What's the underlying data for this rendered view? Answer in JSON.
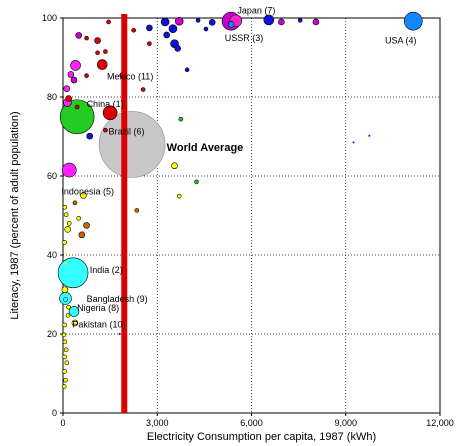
{
  "chart_data": {
    "type": "scatter",
    "xlabel": "Electricity Consumption per capita, 1987 (kWh)",
    "ylabel": "Literacy, 1987 (percent of adult population)",
    "xlim": [
      0,
      12000
    ],
    "ylim": [
      0,
      100
    ],
    "x_ticks": [
      0,
      3000,
      6000,
      9000,
      12000
    ],
    "x_tick_labels": [
      "0",
      "3,000",
      "6,000",
      "9,000",
      "12,000"
    ],
    "y_ticks": [
      0,
      20,
      40,
      60,
      80,
      100
    ],
    "y_tick_labels": [
      "0",
      "20",
      "40",
      "60",
      "80",
      "100"
    ],
    "grid": true,
    "reference_line": {
      "x": 1950,
      "color": "#dd0000"
    },
    "labels": [
      {
        "text": "Japan (7)",
        "x": 5550,
        "y": 101.2,
        "anchor": "start",
        "bold": false
      },
      {
        "text": "USSR (3)",
        "x": 5150,
        "y": 94.2,
        "anchor": "start",
        "bold": false
      },
      {
        "text": "USA (4)",
        "x": 10250,
        "y": 93.6,
        "anchor": "start",
        "bold": false
      },
      {
        "text": "Mexico (11)",
        "x": 1400,
        "y": 84.4,
        "anchor": "start",
        "bold": false
      },
      {
        "text": "China (1)",
        "x": 750,
        "y": 77.5,
        "anchor": "start",
        "bold": false
      },
      {
        "text": "Brazil (6)",
        "x": 1450,
        "y": 70.5,
        "anchor": "start",
        "bold": false
      },
      {
        "text": "World Average",
        "x": 3300,
        "y": 66.3,
        "anchor": "start",
        "bold": true
      },
      {
        "text": "Indonesia (5)",
        "x": -50,
        "y": 55.3,
        "anchor": "start",
        "bold": false
      },
      {
        "text": "India (2)",
        "x": 850,
        "y": 35.5,
        "anchor": "start",
        "bold": false
      },
      {
        "text": "Bangladesh (9)",
        "x": 750,
        "y": 28.1,
        "anchor": "start",
        "bold": false
      },
      {
        "text": "Nigeria (8)",
        "x": 450,
        "y": 25.8,
        "anchor": "start",
        "bold": false
      },
      {
        "text": "Pakistan (10)",
        "x": 300,
        "y": 21.6,
        "anchor": "start",
        "bold": false
      }
    ],
    "points": [
      {
        "name": "World Average",
        "x": 2200,
        "y": 68,
        "r": 33,
        "color": "#c8c8c8",
        "stroke": "#909090"
      },
      {
        "name": "China",
        "x": 450,
        "y": 75,
        "r": 17,
        "color": "#22cc22"
      },
      {
        "name": "India",
        "x": 320,
        "y": 35.5,
        "r": 15,
        "color": "#33ffff"
      },
      {
        "name": "USA",
        "x": 11150,
        "y": 99.2,
        "r": 9,
        "color": "#1188ff"
      },
      {
        "name": "USSR",
        "x": 5350,
        "y": 99.2,
        "r": 9,
        "color": "#cc00cc"
      },
      {
        "name": "Japan",
        "x": 5500,
        "y": 99.3,
        "r": 6,
        "color": "#ff22cc"
      },
      {
        "name": "Brazil",
        "x": 1500,
        "y": 76,
        "r": 7,
        "color": "#dd0000"
      },
      {
        "name": "Indonesia",
        "x": 200,
        "y": 61.5,
        "r": 7,
        "color": "#ff22ff"
      },
      {
        "name": "Mexico",
        "x": 1250,
        "y": 88.2,
        "r": 5,
        "color": "#dd0000"
      },
      {
        "name": "Bangladesh",
        "x": 80,
        "y": 29,
        "r": 6,
        "color": "#33ffff"
      },
      {
        "name": "Nigeria",
        "x": 350,
        "y": 25.7,
        "r": 5,
        "color": "#33ffff"
      },
      {
        "name": "Pakistan",
        "x": 380,
        "y": 22.8,
        "r": 3,
        "color": "#ffff00"
      },
      {
        "name": "",
        "x": 6550,
        "y": 99.5,
        "r": 5,
        "color": "#1111dd"
      },
      {
        "name": "",
        "x": 5350,
        "y": 98.4,
        "r": 3,
        "color": "#1188ff"
      },
      {
        "name": "",
        "x": 3250,
        "y": 99.0,
        "r": 4,
        "color": "#1111dd"
      },
      {
        "name": "",
        "x": 3700,
        "y": 99.2,
        "r": 4,
        "color": "#cc00cc"
      },
      {
        "name": "",
        "x": 3500,
        "y": 97.3,
        "r": 4,
        "color": "#1111dd"
      },
      {
        "name": "",
        "x": 3300,
        "y": 95.7,
        "r": 3,
        "color": "#1111dd"
      },
      {
        "name": "",
        "x": 3550,
        "y": 93.5,
        "r": 4,
        "color": "#1111dd"
      },
      {
        "name": "",
        "x": 3650,
        "y": 92.3,
        "r": 3,
        "color": "#1111dd"
      },
      {
        "name": "",
        "x": 2750,
        "y": 97.5,
        "r": 3,
        "color": "#1111dd"
      },
      {
        "name": "",
        "x": 4300,
        "y": 99.4,
        "r": 2,
        "color": "#1111dd"
      },
      {
        "name": "",
        "x": 4750,
        "y": 98.9,
        "r": 3,
        "color": "#1111dd"
      },
      {
        "name": "",
        "x": 6950,
        "y": 99.0,
        "r": 3,
        "color": "#cc00cc"
      },
      {
        "name": "",
        "x": 7550,
        "y": 99.4,
        "r": 2,
        "color": "#1111dd"
      },
      {
        "name": "",
        "x": 8050,
        "y": 99.0,
        "r": 3,
        "color": "#cc00cc"
      },
      {
        "name": "",
        "x": 4550,
        "y": 97.2,
        "r": 2,
        "color": "#1111dd"
      },
      {
        "name": "",
        "x": 3950,
        "y": 86.9,
        "r": 2,
        "color": "#1111dd"
      },
      {
        "name": "",
        "x": 1950,
        "y": 98.0,
        "r": 2,
        "color": "#dd0000"
      },
      {
        "name": "",
        "x": 1450,
        "y": 99.0,
        "r": 2,
        "color": "#dd0000"
      },
      {
        "name": "",
        "x": 2750,
        "y": 93.5,
        "r": 2,
        "color": "#dd0000"
      },
      {
        "name": "",
        "x": 2250,
        "y": 96.9,
        "r": 2,
        "color": "#dd0000"
      },
      {
        "name": "",
        "x": 500,
        "y": 95.6,
        "r": 3,
        "color": "#cc00cc"
      },
      {
        "name": "",
        "x": 1100,
        "y": 94.3,
        "r": 3,
        "color": "#dd0000"
      },
      {
        "name": "",
        "x": 750,
        "y": 94.9,
        "r": 2,
        "color": "#dd0000"
      },
      {
        "name": "",
        "x": 350,
        "y": 84.3,
        "r": 3,
        "color": "#cc00cc"
      },
      {
        "name": "",
        "x": 750,
        "y": 85.4,
        "r": 2,
        "color": "#dd0000"
      },
      {
        "name": "",
        "x": 1100,
        "y": 91.2,
        "r": 2,
        "color": "#dd0000"
      },
      {
        "name": "",
        "x": 1900,
        "y": 85.5,
        "r": 3,
        "color": "#cc00cc"
      },
      {
        "name": "",
        "x": 1350,
        "y": 91.5,
        "r": 2,
        "color": "#dd0000"
      },
      {
        "name": "",
        "x": 400,
        "y": 88.0,
        "r": 5,
        "color": "#ff22ff"
      },
      {
        "name": "",
        "x": 250,
        "y": 85.7,
        "r": 3,
        "color": "#ff22ff"
      },
      {
        "name": "",
        "x": 120,
        "y": 82.1,
        "r": 3,
        "color": "#ff22ff"
      },
      {
        "name": "",
        "x": 140,
        "y": 78.6,
        "r": 4,
        "color": "#ff22ff"
      },
      {
        "name": "",
        "x": 180,
        "y": 79.6,
        "r": 3,
        "color": "#dd0000"
      },
      {
        "name": "",
        "x": 450,
        "y": 77.5,
        "r": 2,
        "color": "#dd0000"
      },
      {
        "name": "",
        "x": 850,
        "y": 70.1,
        "r": 3,
        "color": "#1111dd"
      },
      {
        "name": "",
        "x": 1350,
        "y": 71.6,
        "r": 2,
        "color": "#dd0000"
      },
      {
        "name": "",
        "x": 2550,
        "y": 81.9,
        "r": 2,
        "color": "#dd0000"
      },
      {
        "name": "",
        "x": 3750,
        "y": 74.4,
        "r": 2,
        "color": "#22cc22"
      },
      {
        "name": "",
        "x": 3550,
        "y": 62.6,
        "r": 3,
        "color": "#ffff00"
      },
      {
        "name": "",
        "x": 4250,
        "y": 58.5,
        "r": 2,
        "color": "#22cc22"
      },
      {
        "name": "",
        "x": 3700,
        "y": 54.9,
        "r": 2,
        "color": "#ffff00"
      },
      {
        "name": "",
        "x": 9750,
        "y": 70.2,
        "r": 1,
        "color": "#1111dd"
      },
      {
        "name": "",
        "x": 9250,
        "y": 68.5,
        "r": 1,
        "color": "#1111dd"
      },
      {
        "name": "",
        "x": 2350,
        "y": 51.3,
        "r": 2,
        "color": "#cc6600"
      },
      {
        "name": "",
        "x": 650,
        "y": 55.1,
        "r": 3,
        "color": "#ffff00"
      },
      {
        "name": "",
        "x": 380,
        "y": 53.2,
        "r": 2,
        "color": "#cc6600"
      },
      {
        "name": "",
        "x": 60,
        "y": 52.1,
        "r": 2,
        "color": "#ffff00"
      },
      {
        "name": "",
        "x": 100,
        "y": 50.2,
        "r": 2,
        "color": "#ffff00"
      },
      {
        "name": "",
        "x": 200,
        "y": 48.0,
        "r": 2,
        "color": "#ffff00"
      },
      {
        "name": "",
        "x": 500,
        "y": 49.3,
        "r": 2,
        "color": "#ffff00"
      },
      {
        "name": "",
        "x": 750,
        "y": 47.5,
        "r": 3,
        "color": "#cc6600"
      },
      {
        "name": "",
        "x": 600,
        "y": 45.1,
        "r": 3,
        "color": "#cc6600"
      },
      {
        "name": "",
        "x": 150,
        "y": 46.5,
        "r": 3,
        "color": "#ffff00"
      },
      {
        "name": "",
        "x": 50,
        "y": 43.2,
        "r": 2,
        "color": "#ffff00"
      },
      {
        "name": "",
        "x": 100,
        "y": 40.6,
        "r": 1,
        "color": "#ffff00"
      },
      {
        "name": "",
        "x": 80,
        "y": 38.0,
        "r": 1,
        "color": "#ffff00"
      },
      {
        "name": "",
        "x": 60,
        "y": 31.2,
        "r": 3,
        "color": "#ffff00"
      },
      {
        "name": "",
        "x": 80,
        "y": 28.7,
        "r": 2,
        "color": "#33ffff"
      },
      {
        "name": "",
        "x": 180,
        "y": 26.8,
        "r": 2,
        "color": "#ffff00"
      },
      {
        "name": "",
        "x": 160,
        "y": 24.7,
        "r": 2,
        "color": "#ffff00"
      },
      {
        "name": "",
        "x": 50,
        "y": 22.3,
        "r": 2,
        "color": "#ffff00"
      },
      {
        "name": "",
        "x": 30,
        "y": 19.8,
        "r": 2,
        "color": "#ffff00"
      },
      {
        "name": "",
        "x": 1800,
        "y": 20.0,
        "r": 1,
        "color": "#1111dd"
      },
      {
        "name": "",
        "x": 60,
        "y": 18.0,
        "r": 2,
        "color": "#ffff00"
      },
      {
        "name": "",
        "x": 100,
        "y": 16.0,
        "r": 2,
        "color": "#ffff00"
      },
      {
        "name": "",
        "x": 50,
        "y": 14.2,
        "r": 2,
        "color": "#ffff00"
      },
      {
        "name": "",
        "x": 120,
        "y": 12.7,
        "r": 2,
        "color": "#ffff00"
      },
      {
        "name": "",
        "x": 50,
        "y": 10.5,
        "r": 2,
        "color": "#ffff00"
      },
      {
        "name": "",
        "x": 80,
        "y": 8.3,
        "r": 2,
        "color": "#ffff00"
      },
      {
        "name": "",
        "x": 40,
        "y": 6.7,
        "r": 2,
        "color": "#ffff00"
      },
      {
        "name": "",
        "x": 60,
        "y": 6.7,
        "r": 1,
        "color": "#ffff00"
      }
    ]
  }
}
